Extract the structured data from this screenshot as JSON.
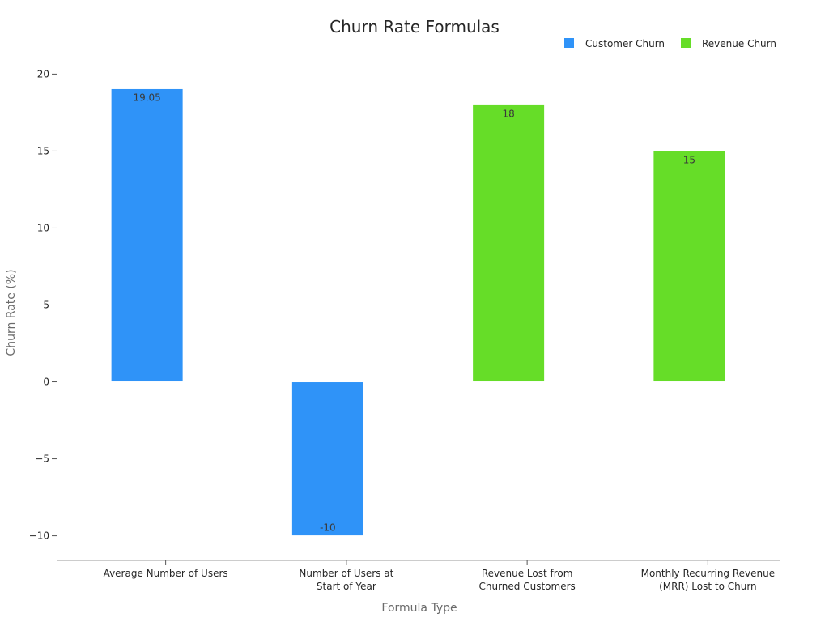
{
  "chart_data": {
    "type": "bar",
    "title": "Churn Rate Formulas",
    "xlabel": "Formula Type",
    "ylabel": "Churn Rate (%)",
    "ylim": [
      -11.6,
      20.6
    ],
    "yticks": [
      -10,
      -5,
      0,
      5,
      10,
      15,
      20
    ],
    "ytick_labels": [
      "−10",
      "−5",
      "0",
      "5",
      "10",
      "15",
      "20"
    ],
    "categories": [
      [
        "Average Number of Users"
      ],
      [
        "Number of Users at",
        "Start of Year"
      ],
      [
        "Revenue Lost from",
        "Churned Customers"
      ],
      [
        "Monthly Recurring Revenue",
        "(MRR) Lost to Churn"
      ]
    ],
    "bars": [
      {
        "value": 19.05,
        "label": "19.05",
        "series": 0
      },
      {
        "value": -10,
        "label": "-10",
        "series": 0
      },
      {
        "value": 18,
        "label": "18",
        "series": 1
      },
      {
        "value": 15,
        "label": "15",
        "series": 1
      }
    ],
    "series": [
      {
        "name": "Customer Churn",
        "color": "#2f93f8"
      },
      {
        "name": "Revenue Churn",
        "color": "#66dd28"
      }
    ],
    "legend_position": "top-right",
    "grid": false
  }
}
